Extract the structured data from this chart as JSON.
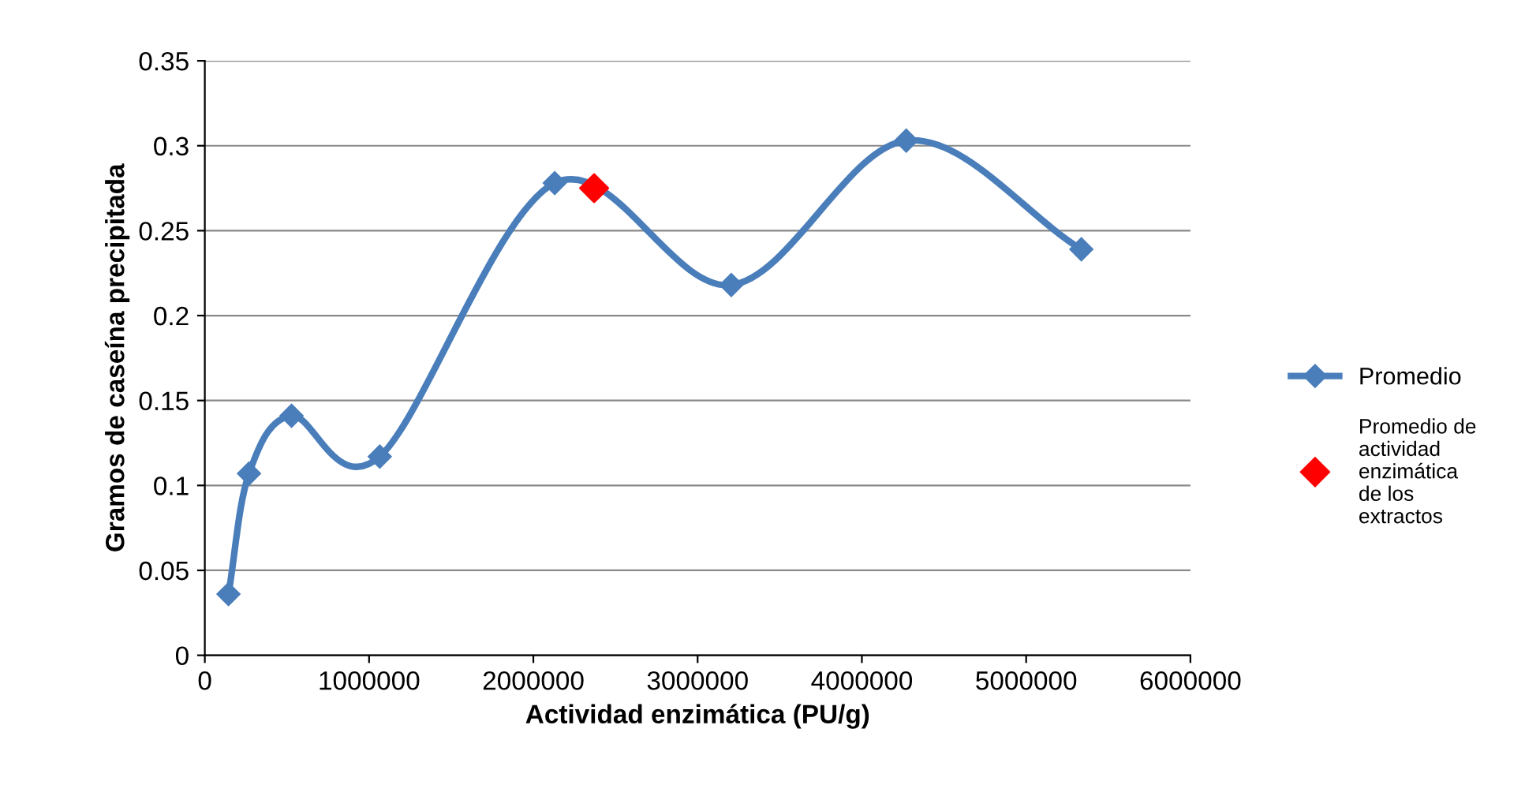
{
  "chart_data": {
    "type": "line",
    "xlabel": "Actividad enzimática (PU/g)",
    "ylabel": "Gramos de caseína precipitada",
    "xlim": [
      0,
      6000000
    ],
    "xticks": [
      0,
      1000000,
      2000000,
      3000000,
      4000000,
      5000000,
      6000000
    ],
    "ylim": [
      0,
      0.35
    ],
    "yticks": [
      0,
      0.05,
      0.1,
      0.15,
      0.2,
      0.25,
      0.3,
      0.35
    ],
    "grid": "y",
    "legend": "right",
    "marker": "diamond",
    "line_style": "solid",
    "series": [
      {
        "name": "Promedio",
        "color": "#4a7ebb",
        "x": [
          144000,
          269000,
          528000,
          1065000,
          2130000,
          3205000,
          4270000,
          5336000
        ],
        "values": [
          0.036,
          0.107,
          0.141,
          0.117,
          0.278,
          0.218,
          0.303,
          0.239
        ]
      },
      {
        "name": "Promedio de actividad enzimática de los extractos",
        "color": "#ff0000",
        "type": "scatter",
        "x": [
          2370000
        ],
        "values": [
          0.275
        ]
      }
    ]
  }
}
